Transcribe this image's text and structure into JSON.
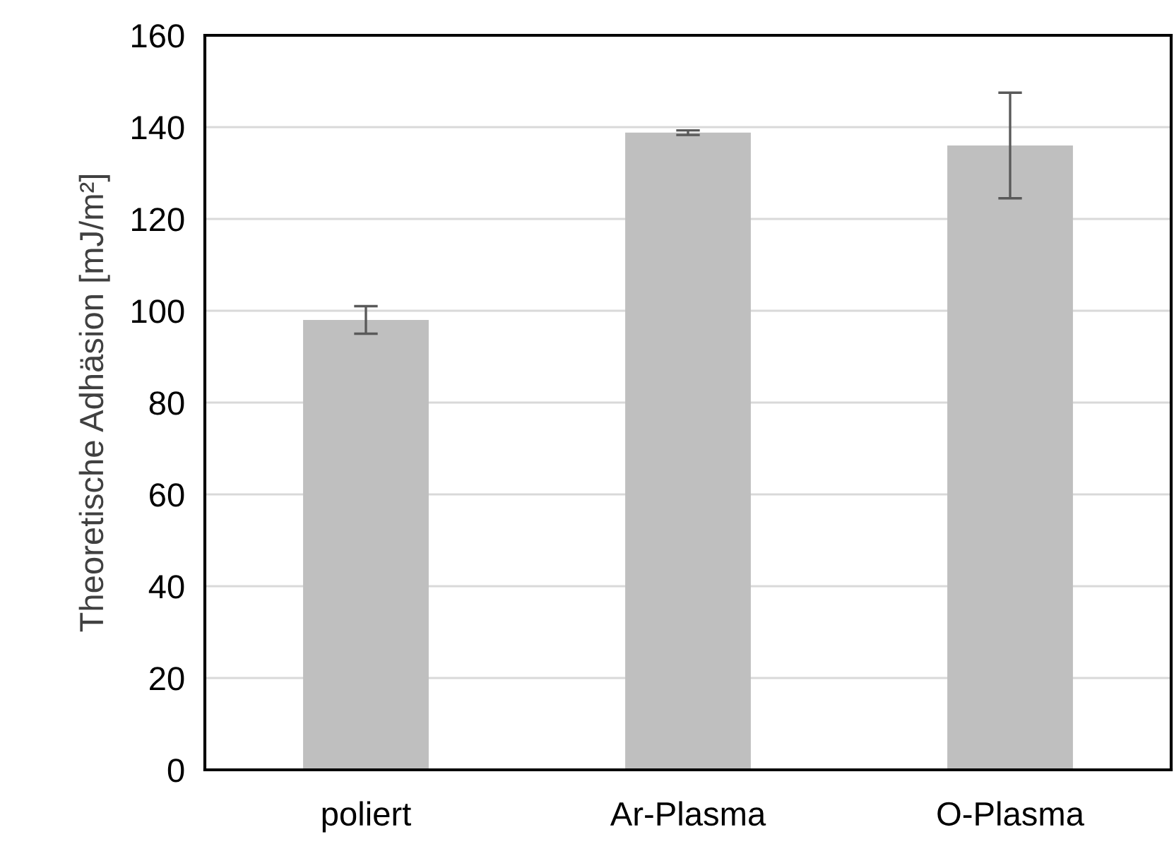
{
  "chart_data": {
    "type": "bar",
    "ylabel": "Theoretische Adhäsion [mJ/m²]",
    "categories": [
      "poliert",
      "Ar-Plasma",
      "O-Plasma"
    ],
    "values": [
      98,
      138.8,
      136
    ],
    "errors": [
      3,
      0.5,
      11.5
    ],
    "color": "#bfbfbf",
    "ylim": [
      0,
      160
    ],
    "yticks": [
      0,
      20,
      40,
      60,
      80,
      100,
      120,
      140,
      160
    ],
    "grid": "y"
  }
}
